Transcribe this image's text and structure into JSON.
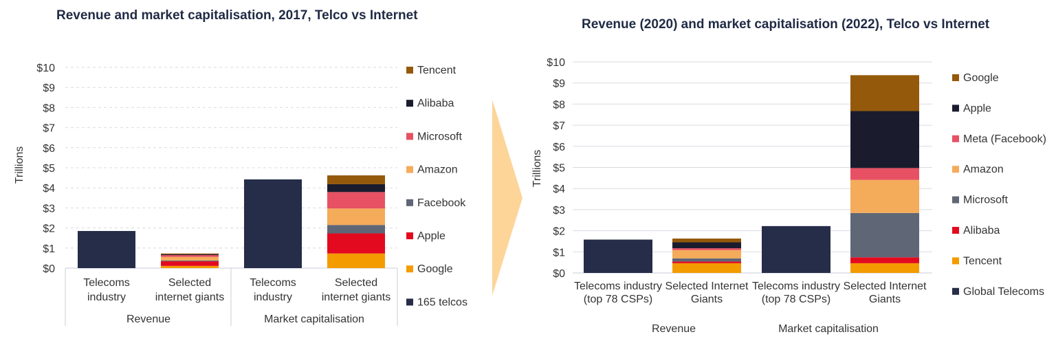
{
  "chart_data": [
    {
      "type": "bar",
      "stacked": true,
      "title": "Revenue and market capitalisation, 2017, Telco vs Internet",
      "ylabel": "Trillions",
      "ylim": [
        0,
        10
      ],
      "yticks": [
        "$0",
        "$1",
        "$2",
        "$3",
        "$4",
        "$5",
        "$6",
        "$7",
        "$8",
        "$9",
        "$10"
      ],
      "categories": [
        "Telecoms industry",
        "Selected internet giants",
        "Telecoms industry",
        "Selected internet giants"
      ],
      "groups": [
        "Revenue",
        "Market capitalisation"
      ],
      "legend_position": "right",
      "series": [
        {
          "name": "165 telcos",
          "color": "#252d48",
          "values": [
            1.85,
            0,
            4.42,
            0
          ]
        },
        {
          "name": "Google",
          "color": "#f49b00",
          "values": [
            0,
            0.11,
            0,
            0.73
          ]
        },
        {
          "name": "Apple",
          "color": "#e30a1f",
          "values": [
            0,
            0.23,
            0,
            1.0
          ]
        },
        {
          "name": "Facebook",
          "color": "#5f6676",
          "values": [
            0,
            0.04,
            0,
            0.42
          ]
        },
        {
          "name": "Amazon",
          "color": "#f4ab5a",
          "values": [
            0,
            0.18,
            0,
            0.82
          ]
        },
        {
          "name": "Microsoft",
          "color": "#e75163",
          "values": [
            0,
            0.09,
            0,
            0.82
          ]
        },
        {
          "name": "Alibaba",
          "color": "#1a1c2e",
          "values": [
            0,
            0.04,
            0,
            0.39
          ]
        },
        {
          "name": "Tencent",
          "color": "#94590b",
          "values": [
            0,
            0.04,
            0,
            0.44
          ]
        }
      ]
    },
    {
      "type": "bar",
      "stacked": true,
      "title": "Revenue (2020) and market capitalisation (2022), Telco vs Internet",
      "ylabel": "Trillions",
      "ylim": [
        0,
        10
      ],
      "yticks": [
        "$0",
        "$1",
        "$2",
        "$3",
        "$4",
        "$5",
        "$6",
        "$7",
        "$8",
        "$9",
        "$10"
      ],
      "categories": [
        "Telecoms industry (top 78 CSPs)",
        "Selected Internet Giants",
        "Telecoms industry (top 78 CSPs)",
        "Selected Internet Giants"
      ],
      "groups": [
        "Revenue",
        "Market capitalisation"
      ],
      "legend_position": "right",
      "series": [
        {
          "name": "Global Telecoms",
          "color": "#252d48",
          "values": [
            1.58,
            0,
            2.22,
            0
          ]
        },
        {
          "name": "Tencent",
          "color": "#f49b00",
          "values": [
            0,
            0.46,
            0,
            0.46
          ]
        },
        {
          "name": "Alibaba",
          "color": "#e30a1f",
          "values": [
            0,
            0.08,
            0,
            0.28
          ]
        },
        {
          "name": "Microsoft",
          "color": "#5f6676",
          "values": [
            0,
            0.15,
            0,
            2.1
          ]
        },
        {
          "name": "Amazon",
          "color": "#f4ab5a",
          "values": [
            0,
            0.39,
            0,
            1.57
          ]
        },
        {
          "name": "Meta (Facebook)",
          "color": "#e75163",
          "values": [
            0,
            0.09,
            0,
            0.56
          ]
        },
        {
          "name": "Apple",
          "color": "#1a1c2e",
          "values": [
            0,
            0.28,
            0,
            2.7
          ]
        },
        {
          "name": "Google",
          "color": "#94590b",
          "values": [
            0,
            0.18,
            0,
            1.7
          ]
        }
      ]
    }
  ]
}
